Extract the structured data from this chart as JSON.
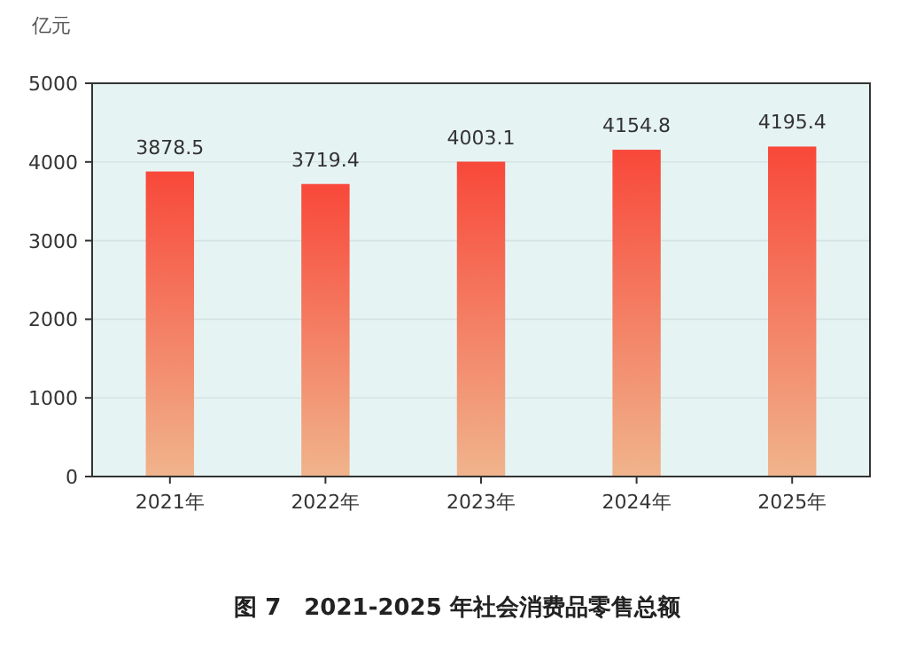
{
  "chart_data": {
    "type": "bar",
    "title": "图 7　2021-2025 年社会消费品零售总额",
    "ylabel": "亿元",
    "categories": [
      "2021年",
      "2022年",
      "2023年",
      "2024年",
      "2025年"
    ],
    "values": [
      3878.5,
      3719.4,
      4003.1,
      4154.8,
      4195.4
    ],
    "value_labels": [
      "3878.5",
      "3719.4",
      "4003.1",
      "4154.8",
      "4195.4"
    ],
    "color": "#f8483a",
    "ylim": [
      0,
      5000
    ],
    "yticks": [
      0,
      1000,
      2000,
      3000,
      4000,
      5000
    ],
    "grid": "y"
  }
}
